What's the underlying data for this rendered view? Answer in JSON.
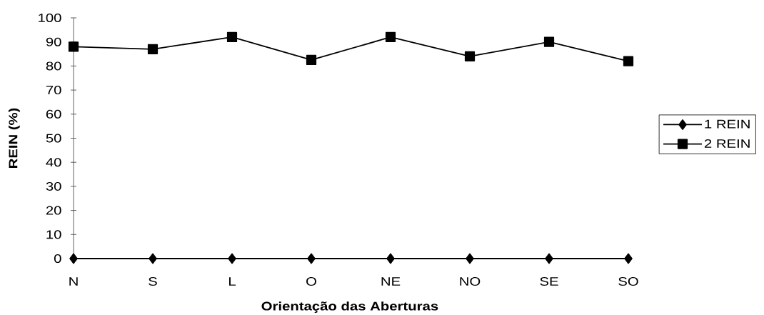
{
  "chart_data": {
    "type": "line",
    "xlabel": "Orientação das Aberturas",
    "ylabel": "REIN (%)",
    "categories": [
      "N",
      "S",
      "L",
      "O",
      "NE",
      "NO",
      "SE",
      "SO"
    ],
    "series": [
      {
        "name": "1 REIN",
        "color": "#000000",
        "marker": "diamond",
        "values": [
          0,
          0,
          0,
          0,
          0,
          0,
          0,
          0
        ]
      },
      {
        "name": "2 REIN",
        "color": "#000000",
        "marker": "square",
        "values": [
          88,
          87,
          92,
          82.5,
          92,
          84,
          90,
          82
        ]
      }
    ],
    "ylim": [
      0,
      100
    ],
    "yticks": [
      0,
      10,
      20,
      30,
      40,
      50,
      60,
      70,
      80,
      90,
      100
    ],
    "grid": false,
    "legend": "right",
    "line_style": "solid"
  }
}
